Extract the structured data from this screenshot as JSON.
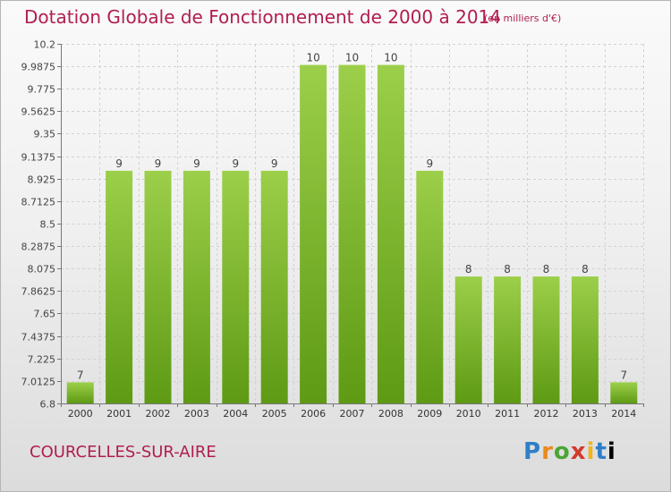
{
  "header": {
    "title": "Dotation Globale de Fonctionnement de 2000 à 2014",
    "unit": "(en milliers d'€)"
  },
  "footer": {
    "commune": "COURCELLES-SUR-AIRE",
    "logo": "Proxiti"
  },
  "colors": {
    "bar_light": "#9ccf4a",
    "bar_dark": "#5e9a14",
    "title": "#b11e4e"
  },
  "chart_data": {
    "type": "bar",
    "title": "Dotation Globale de Fonctionnement de 2000 à 2014",
    "subtitle": "(en milliers d'€)",
    "xlabel": "",
    "ylabel": "",
    "categories": [
      "2000",
      "2001",
      "2002",
      "2003",
      "2004",
      "2005",
      "2006",
      "2007",
      "2008",
      "2009",
      "2010",
      "2011",
      "2012",
      "2013",
      "2014"
    ],
    "values": [
      7,
      9,
      9,
      9,
      9,
      9,
      10,
      10,
      10,
      9,
      8,
      8,
      8,
      8,
      7
    ],
    "data_labels": [
      "7",
      "9",
      "9",
      "9",
      "9",
      "9",
      "10",
      "10",
      "10",
      "9",
      "8",
      "8",
      "8",
      "8",
      "7"
    ],
    "plotted_values": [
      7.0,
      9.0,
      9.0,
      9.0,
      9.0,
      9.0,
      10.0,
      10.0,
      10.0,
      9.0,
      8.0,
      8.0,
      8.0,
      8.0,
      7.0
    ],
    "ylim": [
      6.8,
      10.2
    ],
    "yticks": [
      "6.8",
      "7.0125",
      "7.225",
      "7.4375",
      "7.65",
      "7.8625",
      "8.075",
      "8.2875",
      "8.5",
      "8.7125",
      "8.925",
      "9.1375",
      "9.35",
      "9.5625",
      "9.775",
      "9.9875",
      "10.2"
    ],
    "ytick_values": [
      6.8,
      7.0125,
      7.225,
      7.4375,
      7.65,
      7.8625,
      8.075,
      8.2875,
      8.5,
      8.7125,
      8.925,
      9.1375,
      9.35,
      9.5625,
      9.775,
      9.9875,
      10.2
    ],
    "grid": true,
    "legend": "none"
  }
}
